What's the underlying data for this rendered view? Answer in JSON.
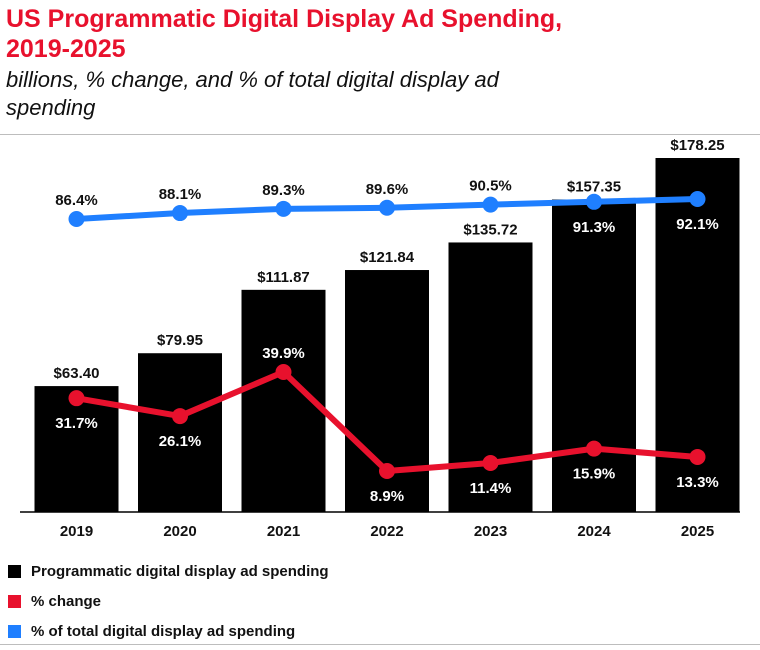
{
  "title_line1": "US Programmatic Digital Display Ad Spending,",
  "title_line2": "2019-2025",
  "subtitle_line1": "billions, % change, and % of total digital display ad",
  "subtitle_line2": "spending",
  "colors": {
    "bar": "#000000",
    "change": "#e8112d",
    "share": "#1f7fff",
    "title": "#e8112d"
  },
  "chart_data": {
    "type": "bar",
    "categories": [
      "2019",
      "2020",
      "2021",
      "2022",
      "2023",
      "2024",
      "2025"
    ],
    "series": [
      {
        "name": "Programmatic digital display ad spending",
        "type": "bar",
        "values": [
          63.4,
          79.95,
          111.87,
          121.84,
          135.72,
          157.35,
          178.25
        ],
        "labels": [
          "$63.40",
          "$79.95",
          "$111.87",
          "$121.84",
          "$135.72",
          "$157.35",
          "$178.25"
        ]
      },
      {
        "name": "% change",
        "type": "line",
        "values": [
          31.7,
          26.1,
          39.9,
          8.9,
          11.4,
          15.9,
          13.3
        ],
        "labels": [
          "31.7%",
          "26.1%",
          "39.9%",
          "8.9%",
          "11.4%",
          "15.9%",
          "13.3%"
        ]
      },
      {
        "name": "% of total digital display ad spending",
        "type": "line",
        "values": [
          86.4,
          88.1,
          89.3,
          89.6,
          90.5,
          91.3,
          92.1
        ],
        "labels": [
          "86.4%",
          "88.1%",
          "89.3%",
          "89.6%",
          "90.5%",
          "91.3%",
          "92.1%"
        ]
      }
    ],
    "legend_position": "bottom-left",
    "grid": false
  },
  "legend": [
    {
      "label": "Programmatic digital display ad spending",
      "color": "#000000"
    },
    {
      "label": "% change",
      "color": "#e8112d"
    },
    {
      "label": "% of total digital display ad spending",
      "color": "#1f7fff"
    }
  ]
}
